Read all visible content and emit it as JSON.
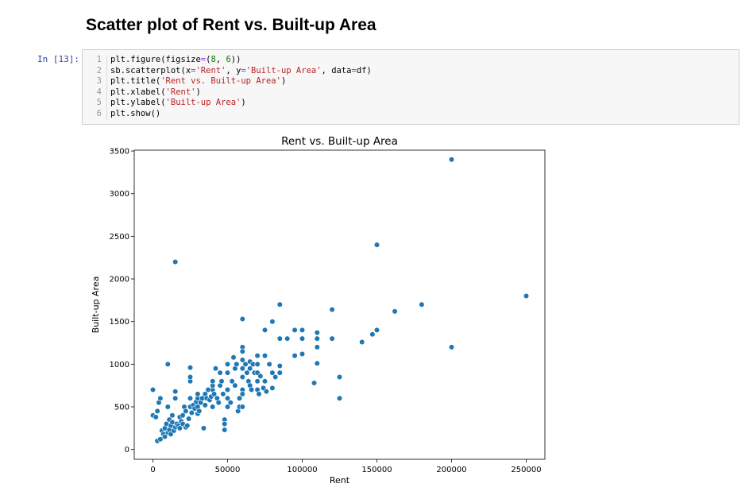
{
  "heading": "Scatter plot of Rent vs. Built-up Area",
  "cell": {
    "prompt": "In [13]:",
    "lines": [
      {
        "num": "1",
        "tokens": [
          [
            "t",
            "plt.figure(figsize"
          ],
          [
            "o",
            "="
          ],
          [
            "t",
            "("
          ],
          [
            "n",
            "8"
          ],
          [
            "t",
            ", "
          ],
          [
            "n",
            "6"
          ],
          [
            "t",
            "))"
          ]
        ]
      },
      {
        "num": "2",
        "tokens": [
          [
            "t",
            "sb.scatterplot(x"
          ],
          [
            "o",
            "="
          ],
          [
            "s",
            "'Rent'"
          ],
          [
            "t",
            ", y"
          ],
          [
            "o",
            "="
          ],
          [
            "s",
            "'Built-up Area'"
          ],
          [
            "t",
            ", data"
          ],
          [
            "o",
            "="
          ],
          [
            "t",
            "df)"
          ]
        ]
      },
      {
        "num": "3",
        "tokens": [
          [
            "t",
            "plt.title("
          ],
          [
            "s",
            "'Rent vs. Built-up Area'"
          ],
          [
            "t",
            ")"
          ]
        ]
      },
      {
        "num": "4",
        "tokens": [
          [
            "t",
            "plt.xlabel("
          ],
          [
            "s",
            "'Rent'"
          ],
          [
            "t",
            ")"
          ]
        ]
      },
      {
        "num": "5",
        "tokens": [
          [
            "t",
            "plt.ylabel("
          ],
          [
            "s",
            "'Built-up Area'"
          ],
          [
            "t",
            ")"
          ]
        ]
      },
      {
        "num": "6",
        "tokens": [
          [
            "t",
            "plt.show()"
          ]
        ]
      }
    ]
  },
  "chart_data": {
    "type": "scatter",
    "title": "Rent vs. Built-up Area",
    "xlabel": "Rent",
    "ylabel": "Built-up Area",
    "xlim": [
      -12500,
      262500
    ],
    "ylim": [
      -115,
      3510
    ],
    "xticks": [
      0,
      50000,
      100000,
      150000,
      200000,
      250000
    ],
    "xtick_labels": [
      "0",
      "50000",
      "100000",
      "150000",
      "200000",
      "250000"
    ],
    "yticks": [
      0,
      500,
      1000,
      1500,
      2000,
      2500,
      3000,
      3500
    ],
    "ytick_labels": [
      "0",
      "500",
      "1000",
      "1500",
      "2000",
      "2500",
      "3000",
      "3500"
    ],
    "grid": false,
    "marker_color": "#1f77b4",
    "points": [
      [
        0,
        700
      ],
      [
        0,
        400
      ],
      [
        2000,
        380
      ],
      [
        3000,
        450
      ],
      [
        4000,
        550
      ],
      [
        5000,
        600
      ],
      [
        3000,
        100
      ],
      [
        5000,
        120
      ],
      [
        6000,
        220
      ],
      [
        7000,
        180
      ],
      [
        8000,
        150
      ],
      [
        8000,
        250
      ],
      [
        9000,
        300
      ],
      [
        10000,
        200
      ],
      [
        10000,
        1000
      ],
      [
        10000,
        500
      ],
      [
        11000,
        350
      ],
      [
        11000,
        230
      ],
      [
        12000,
        280
      ],
      [
        12000,
        180
      ],
      [
        13000,
        320
      ],
      [
        13000,
        400
      ],
      [
        14000,
        220
      ],
      [
        15000,
        260
      ],
      [
        15000,
        600
      ],
      [
        15000,
        680
      ],
      [
        15000,
        2200
      ],
      [
        16000,
        300
      ],
      [
        17000,
        280
      ],
      [
        18000,
        380
      ],
      [
        18000,
        250
      ],
      [
        19000,
        330
      ],
      [
        20000,
        300
      ],
      [
        20000,
        400
      ],
      [
        21000,
        500
      ],
      [
        22000,
        450
      ],
      [
        22000,
        260
      ],
      [
        23000,
        280
      ],
      [
        24000,
        360
      ],
      [
        25000,
        500
      ],
      [
        25000,
        600
      ],
      [
        25000,
        800
      ],
      [
        25000,
        850
      ],
      [
        25000,
        960
      ],
      [
        26000,
        430
      ],
      [
        27000,
        520
      ],
      [
        28000,
        480
      ],
      [
        29000,
        560
      ],
      [
        30000,
        600
      ],
      [
        30000,
        650
      ],
      [
        30000,
        420
      ],
      [
        30000,
        500
      ],
      [
        31000,
        450
      ],
      [
        32000,
        550
      ],
      [
        33000,
        600
      ],
      [
        34000,
        250
      ],
      [
        35000,
        520
      ],
      [
        35000,
        650
      ],
      [
        36000,
        600
      ],
      [
        37000,
        700
      ],
      [
        38000,
        580
      ],
      [
        39000,
        620
      ],
      [
        40000,
        700
      ],
      [
        40000,
        750
      ],
      [
        40000,
        800
      ],
      [
        40000,
        500
      ],
      [
        41000,
        650
      ],
      [
        42000,
        950
      ],
      [
        43000,
        600
      ],
      [
        44000,
        550
      ],
      [
        45000,
        900
      ],
      [
        45000,
        750
      ],
      [
        46000,
        800
      ],
      [
        47000,
        650
      ],
      [
        48000,
        350
      ],
      [
        48000,
        300
      ],
      [
        48000,
        230
      ],
      [
        50000,
        1000
      ],
      [
        50000,
        900
      ],
      [
        50000,
        700
      ],
      [
        50000,
        600
      ],
      [
        50000,
        500
      ],
      [
        52000,
        550
      ],
      [
        53000,
        800
      ],
      [
        54000,
        1080
      ],
      [
        55000,
        750
      ],
      [
        55000,
        950
      ],
      [
        56000,
        1000
      ],
      [
        57000,
        450
      ],
      [
        58000,
        600
      ],
      [
        58000,
        500
      ],
      [
        60000,
        1530
      ],
      [
        60000,
        1200
      ],
      [
        60000,
        1150
      ],
      [
        60000,
        1050
      ],
      [
        60000,
        950
      ],
      [
        60000,
        850
      ],
      [
        60000,
        700
      ],
      [
        60000,
        650
      ],
      [
        60000,
        500
      ],
      [
        62000,
        1000
      ],
      [
        63000,
        900
      ],
      [
        64000,
        800
      ],
      [
        65000,
        1030
      ],
      [
        65000,
        950
      ],
      [
        65000,
        750
      ],
      [
        66000,
        700
      ],
      [
        67000,
        1000
      ],
      [
        68000,
        900
      ],
      [
        70000,
        1100
      ],
      [
        70000,
        1000
      ],
      [
        70000,
        900
      ],
      [
        70000,
        800
      ],
      [
        70000,
        700
      ],
      [
        71000,
        650
      ],
      [
        72000,
        860
      ],
      [
        74000,
        720
      ],
      [
        75000,
        1100
      ],
      [
        75000,
        1400
      ],
      [
        75000,
        800
      ],
      [
        76000,
        680
      ],
      [
        78000,
        1000
      ],
      [
        80000,
        1500
      ],
      [
        80000,
        900
      ],
      [
        80000,
        720
      ],
      [
        82000,
        850
      ],
      [
        85000,
        1300
      ],
      [
        85000,
        1700
      ],
      [
        85000,
        980
      ],
      [
        85000,
        900
      ],
      [
        90000,
        1300
      ],
      [
        95000,
        1400
      ],
      [
        95000,
        1100
      ],
      [
        100000,
        1400
      ],
      [
        100000,
        1300
      ],
      [
        100000,
        1120
      ],
      [
        108000,
        780
      ],
      [
        110000,
        1370
      ],
      [
        110000,
        1300
      ],
      [
        110000,
        1200
      ],
      [
        110000,
        1010
      ],
      [
        120000,
        1640
      ],
      [
        120000,
        1300
      ],
      [
        125000,
        850
      ],
      [
        125000,
        600
      ],
      [
        140000,
        1260
      ],
      [
        147000,
        1350
      ],
      [
        150000,
        1400
      ],
      [
        150000,
        2400
      ],
      [
        162000,
        1620
      ],
      [
        180000,
        1700
      ],
      [
        200000,
        3400
      ],
      [
        200000,
        1200
      ],
      [
        250000,
        1800
      ]
    ]
  }
}
